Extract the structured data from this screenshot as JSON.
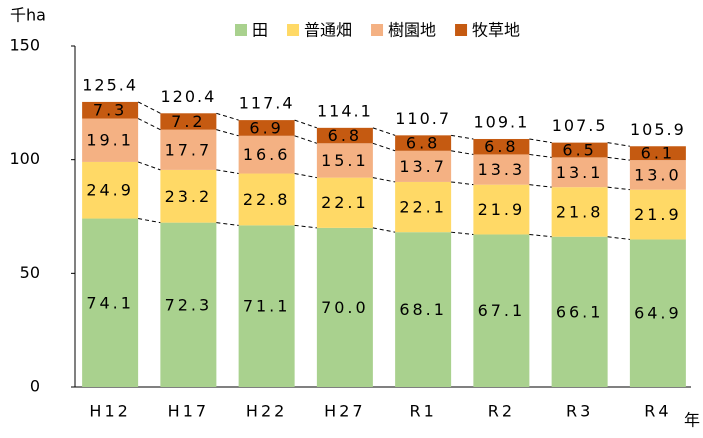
{
  "chart_data": {
    "type": "stacked_bar",
    "y_axis_label": "千ha",
    "x_axis_label": "年",
    "categories": [
      "H12",
      "H17",
      "H22",
      "H27",
      "R1",
      "R2",
      "R3",
      "R4"
    ],
    "series": [
      {
        "name": "田",
        "color": "#a9d18e",
        "values": [
          74.1,
          72.3,
          71.1,
          70.0,
          68.1,
          67.1,
          66.1,
          64.9
        ],
        "value_labels": [
          "74.1",
          "72.3",
          "71.1",
          "70.0",
          "68.1",
          "67.1",
          "66.1",
          "64.9"
        ]
      },
      {
        "name": "普通畑",
        "color": "#ffd966",
        "values": [
          24.9,
          23.2,
          22.8,
          22.1,
          22.1,
          21.9,
          21.8,
          21.9
        ],
        "value_labels": [
          "24.9",
          "23.2",
          "22.8",
          "22.1",
          "22.1",
          "21.9",
          "21.8",
          "21.9"
        ]
      },
      {
        "name": "樹園地",
        "color": "#f4b183",
        "values": [
          19.1,
          17.7,
          16.6,
          15.1,
          13.7,
          13.3,
          13.1,
          13.0
        ],
        "value_labels": [
          "19.1",
          "17.7",
          "16.6",
          "15.1",
          "13.7",
          "13.3",
          "13.1",
          "13.0"
        ]
      },
      {
        "name": "牧草地",
        "color": "#c55a11",
        "values": [
          7.3,
          7.2,
          6.9,
          6.8,
          6.8,
          6.8,
          6.5,
          6.1
        ],
        "value_labels": [
          "7.3",
          "7.2",
          "6.9",
          "6.8",
          "6.8",
          "6.8",
          "6.5",
          "6.1"
        ]
      }
    ],
    "totals": [
      125.4,
      120.4,
      117.4,
      114.1,
      110.7,
      109.1,
      107.5,
      105.9
    ],
    "ylim": [
      0,
      150
    ],
    "yticks": [
      0,
      50,
      100,
      150
    ],
    "grid": false,
    "legend": "top"
  }
}
